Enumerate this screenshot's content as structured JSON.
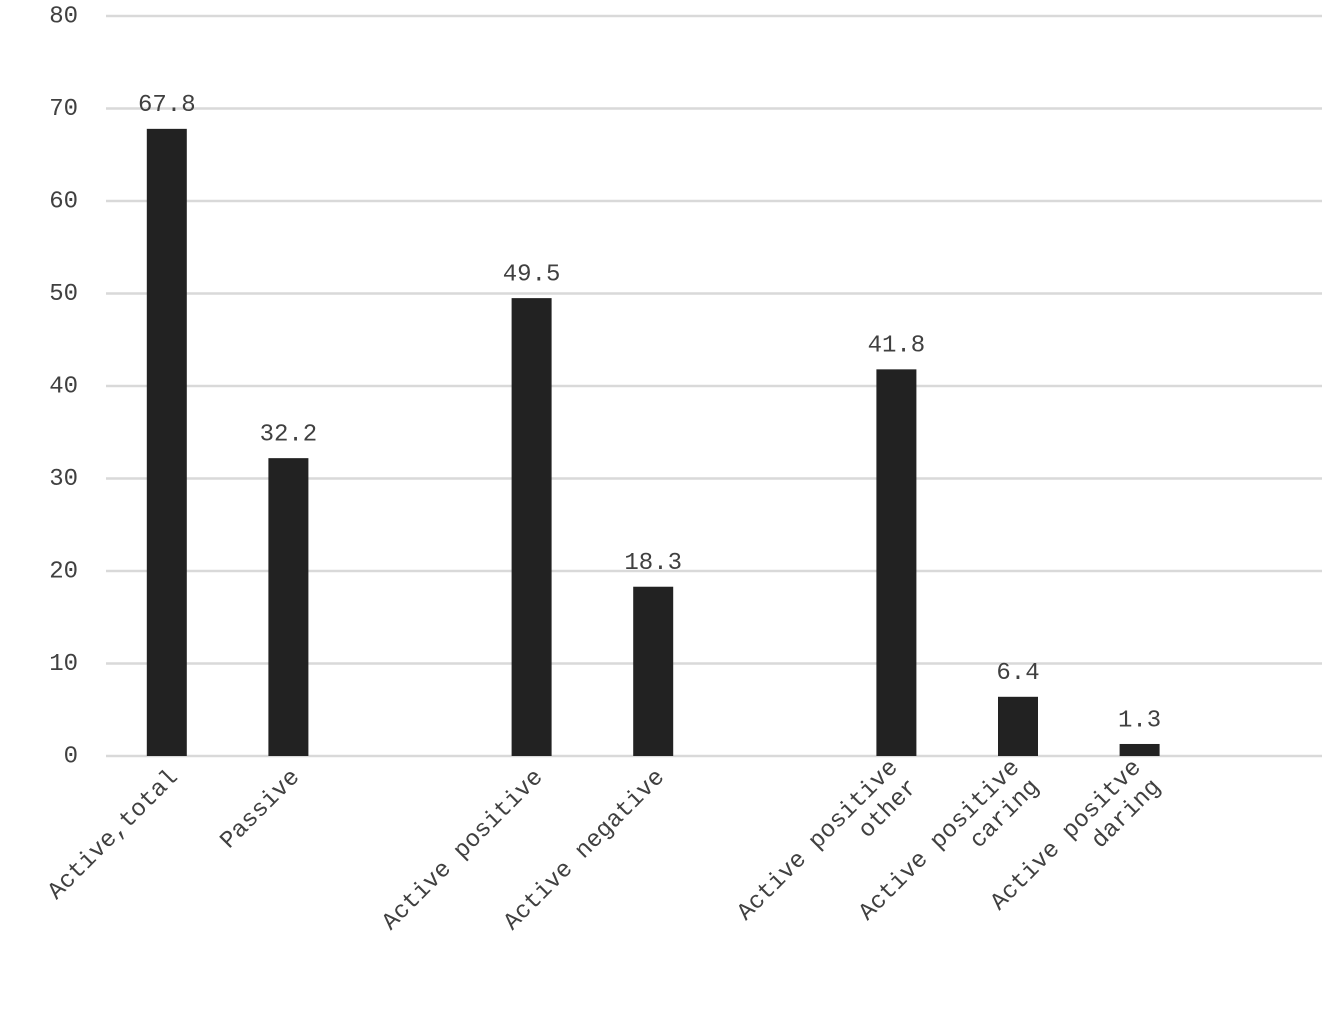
{
  "chart_data": {
    "type": "bar",
    "categories": [
      "Active,total",
      "Passive",
      null,
      "Active positive",
      "Active negative",
      null,
      [
        "Active positive",
        "other"
      ],
      [
        "Active positive",
        "caring"
      ],
      [
        "Active positve",
        "daring"
      ],
      null
    ],
    "values": [
      67.8,
      32.2,
      null,
      49.5,
      18.3,
      null,
      41.8,
      6.4,
      1.3,
      null
    ],
    "color": "#222222",
    "ylim": [
      0,
      80
    ],
    "yticks": [
      0,
      10,
      20,
      30,
      40,
      50,
      60,
      70,
      80
    ],
    "grid": true,
    "data_labels": true
  }
}
